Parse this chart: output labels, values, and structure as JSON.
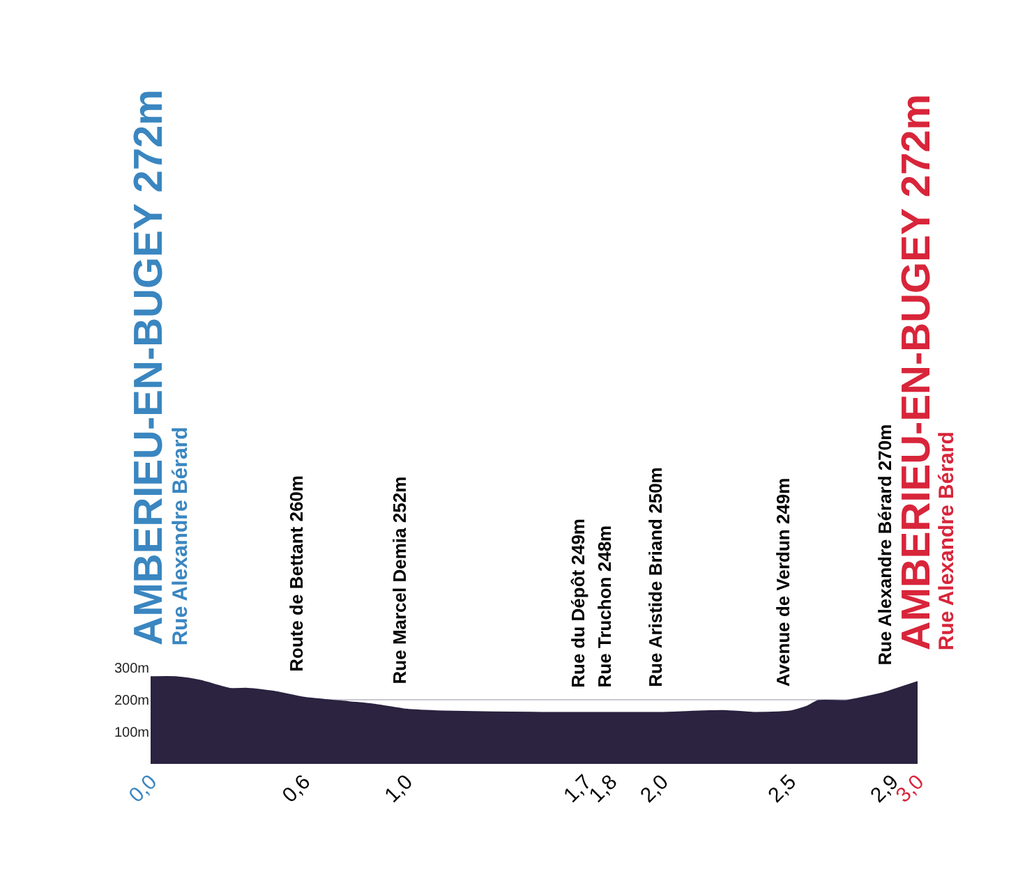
{
  "chart_data": {
    "type": "area",
    "x": [
      0,
      0.1,
      0.195,
      0.31,
      0.38,
      0.48,
      0.6,
      0.74,
      0.88,
      1.0,
      1.145,
      1.53,
      1.7,
      1.8,
      2.0,
      2.24,
      2.36,
      2.5,
      2.57,
      2.61,
      2.72,
      2.76,
      2.86,
      2.9,
      3.0
    ],
    "series": [
      {
        "color": "#2b2340",
        "values": [
          271,
          271,
          260,
          235,
          235,
          226,
          207,
          196,
          185,
          170,
          164,
          160,
          160,
          160,
          160,
          166,
          160,
          164,
          180,
          197,
          197,
          203,
          220,
          230,
          256
        ]
      }
    ],
    "xlim": [
      0,
      3
    ],
    "xticks": [
      {
        "value": 0,
        "label": "0,0"
      },
      {
        "value": 0.6,
        "label": "0,6"
      },
      {
        "value": 1.0,
        "label": "1,0"
      },
      {
        "value": 1.7,
        "label": "1,7"
      },
      {
        "value": 1.8,
        "label": "1,8"
      },
      {
        "value": 2.0,
        "label": "2,0"
      },
      {
        "value": 2.5,
        "label": "2,5"
      },
      {
        "value": 2.9,
        "label": "2,9"
      },
      {
        "value": 3.0,
        "label": "3,0"
      }
    ],
    "ylim": [
      0,
      300
    ],
    "yticks": [
      {
        "value": 100,
        "label": "100m"
      },
      {
        "value": 200,
        "label": "200m"
      },
      {
        "value": 300,
        "label": "300m"
      }
    ],
    "grid": "y",
    "annotations": [
      {
        "text": "AMBERIEU-EN-BUGEY 272m",
        "x": 0,
        "y": 271
      },
      {
        "text": "Rue Alexandre Bérard",
        "x": 0,
        "y": 271
      },
      {
        "text": "Route de Bettant 260m",
        "x": 0.6,
        "y": 207
      },
      {
        "text": "Rue Marcel Demia 252m",
        "x": 1.0,
        "y": 170
      },
      {
        "text": "Rue du Dépôt 249m",
        "x": 1.7,
        "y": 160
      },
      {
        "text": "Rue Truchon 248m",
        "x": 1.8,
        "y": 160
      },
      {
        "text": "Rue Aristide Briand 250m",
        "x": 2.0,
        "y": 160
      },
      {
        "text": "Avenue de Verdun 249m",
        "x": 2.5,
        "y": 164
      },
      {
        "text": "Rue Alexandre Bérard 270m",
        "x": 2.9,
        "y": 230
      },
      {
        "text": "AMBERIEU-EN-BUGEY 272m",
        "x": 3.0,
        "y": 256
      },
      {
        "text": "Rue Alexandre Bérard",
        "x": 3.0,
        "y": 256
      }
    ]
  }
}
